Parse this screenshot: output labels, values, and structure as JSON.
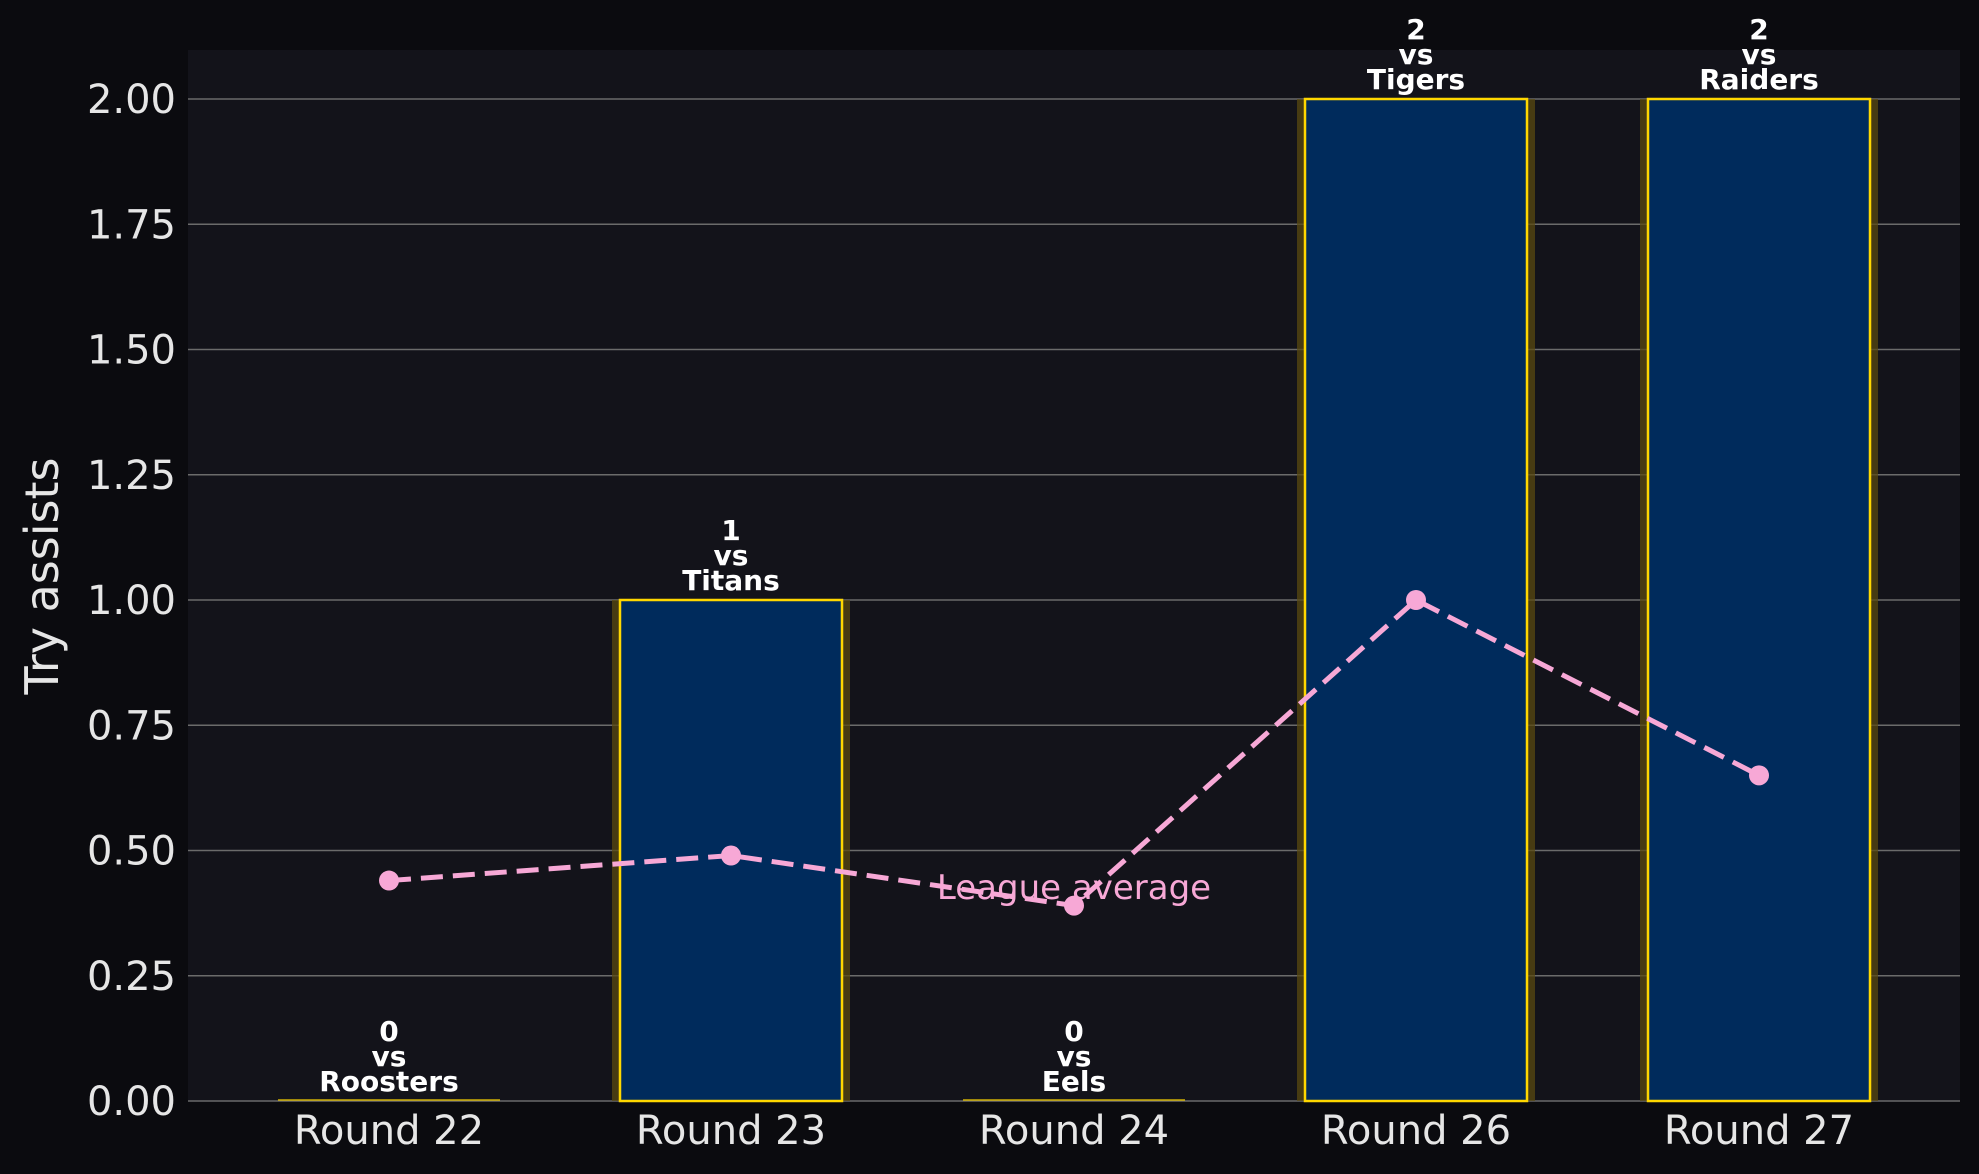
{
  "chart_data": {
    "type": "bar",
    "title": "",
    "xlabel": "",
    "ylabel": "Try assists",
    "ylim": [
      0,
      2.1
    ],
    "yticks": [
      "0.00",
      "0.25",
      "0.50",
      "0.75",
      "1.00",
      "1.25",
      "1.50",
      "1.75",
      "2.00"
    ],
    "grid": true,
    "categories": [
      "Round 22",
      "Round 23",
      "Round 24",
      "Round 26",
      "Round 27"
    ],
    "series": [
      {
        "type": "bar",
        "values": [
          0,
          1,
          0,
          2,
          2
        ]
      },
      {
        "type": "line",
        "style": "dashed",
        "name": "League average",
        "values": [
          0.44,
          0.49,
          0.39,
          1.0,
          0.65
        ]
      }
    ],
    "bar_labels": [
      [
        "0",
        "vs",
        "Roosters"
      ],
      [
        "1",
        "vs",
        "Titans"
      ],
      [
        "0",
        "vs",
        "Eels"
      ],
      [
        "2",
        "vs",
        "Tigers"
      ],
      [
        "2",
        "vs",
        "Raiders"
      ]
    ],
    "colors": {
      "background": "#0b0b0f",
      "plot_background": "#13131a",
      "bar_fill": "#002b5c",
      "bar_edge": "#ffd700",
      "bar_glow": "#5a4a10",
      "line": "#f7a8d6",
      "grid": "#6b6b6b",
      "text": "#e6e6e6"
    }
  }
}
